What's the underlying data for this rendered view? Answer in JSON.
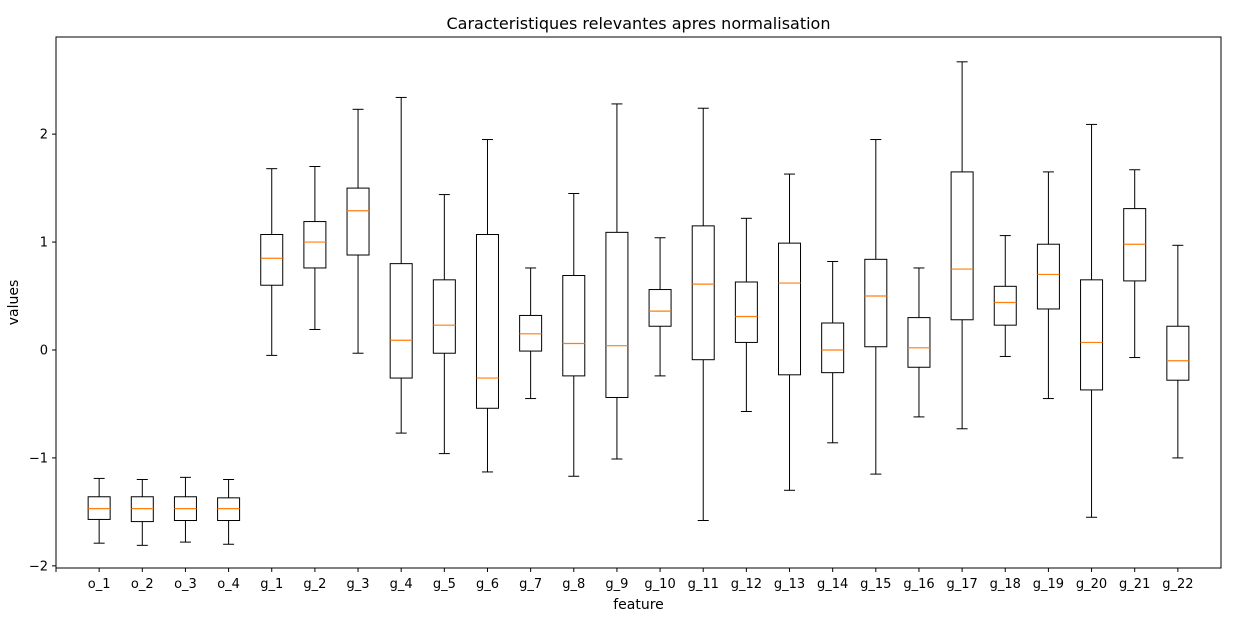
{
  "chart_data": {
    "type": "box",
    "title": "Caracteristiques relevantes apres normalisation",
    "xlabel": "feature",
    "ylabel": "values",
    "ylim": [
      -2.02,
      2.9
    ],
    "yticks": [
      -2,
      -1,
      0,
      1,
      2
    ],
    "ytick_labels": [
      "−2",
      "−1",
      "0",
      "1",
      "2"
    ],
    "colors": {
      "box": "#000000",
      "median": "#ff7f0e"
    },
    "grid": false,
    "categories": [
      "o_1",
      "o_2",
      "o_3",
      "o_4",
      "g_1",
      "g_2",
      "g_3",
      "g_4",
      "g_5",
      "g_6",
      "g_7",
      "g_8",
      "g_9",
      "g_10",
      "g_11",
      "g_12",
      "g_13",
      "g_14",
      "g_15",
      "g_16",
      "g_17",
      "g_18",
      "g_19",
      "g_20",
      "g_21",
      "g_22"
    ],
    "boxes": [
      {
        "whislo": -1.79,
        "q1": -1.57,
        "med": -1.47,
        "q3": -1.36,
        "whishi": -1.19
      },
      {
        "whislo": -1.81,
        "q1": -1.59,
        "med": -1.47,
        "q3": -1.36,
        "whishi": -1.2
      },
      {
        "whislo": -1.78,
        "q1": -1.58,
        "med": -1.47,
        "q3": -1.36,
        "whishi": -1.18
      },
      {
        "whislo": -1.8,
        "q1": -1.58,
        "med": -1.47,
        "q3": -1.37,
        "whishi": -1.2
      },
      {
        "whislo": -0.05,
        "q1": 0.6,
        "med": 0.85,
        "q3": 1.07,
        "whishi": 1.68
      },
      {
        "whislo": 0.19,
        "q1": 0.76,
        "med": 1.0,
        "q3": 1.19,
        "whishi": 1.7
      },
      {
        "whislo": -0.03,
        "q1": 0.88,
        "med": 1.29,
        "q3": 1.5,
        "whishi": 2.23
      },
      {
        "whislo": -0.77,
        "q1": -0.26,
        "med": 0.09,
        "q3": 0.8,
        "whishi": 2.34
      },
      {
        "whislo": -0.96,
        "q1": -0.03,
        "med": 0.23,
        "q3": 0.65,
        "whishi": 1.44
      },
      {
        "whislo": -1.13,
        "q1": -0.54,
        "med": -0.26,
        "q3": 1.07,
        "whishi": 1.95
      },
      {
        "whislo": -0.45,
        "q1": -0.01,
        "med": 0.15,
        "q3": 0.32,
        "whishi": 0.76
      },
      {
        "whislo": -1.17,
        "q1": -0.24,
        "med": 0.06,
        "q3": 0.69,
        "whishi": 1.45
      },
      {
        "whislo": -1.01,
        "q1": -0.44,
        "med": 0.04,
        "q3": 1.09,
        "whishi": 2.28
      },
      {
        "whislo": -0.24,
        "q1": 0.22,
        "med": 0.36,
        "q3": 0.56,
        "whishi": 1.04
      },
      {
        "whislo": -1.58,
        "q1": -0.09,
        "med": 0.61,
        "q3": 1.15,
        "whishi": 2.24
      },
      {
        "whislo": -0.57,
        "q1": 0.07,
        "med": 0.31,
        "q3": 0.63,
        "whishi": 1.22
      },
      {
        "whislo": -1.3,
        "q1": -0.23,
        "med": 0.62,
        "q3": 0.99,
        "whishi": 1.63
      },
      {
        "whislo": -0.86,
        "q1": -0.21,
        "med": 0.0,
        "q3": 0.25,
        "whishi": 0.82
      },
      {
        "whislo": -1.15,
        "q1": 0.03,
        "med": 0.5,
        "q3": 0.84,
        "whishi": 1.95
      },
      {
        "whislo": -0.62,
        "q1": -0.16,
        "med": 0.02,
        "q3": 0.3,
        "whishi": 0.76
      },
      {
        "whislo": -0.73,
        "q1": 0.28,
        "med": 0.75,
        "q3": 1.65,
        "whishi": 2.67
      },
      {
        "whislo": -0.06,
        "q1": 0.23,
        "med": 0.44,
        "q3": 0.59,
        "whishi": 1.06
      },
      {
        "whislo": -0.45,
        "q1": 0.38,
        "med": 0.7,
        "q3": 0.98,
        "whishi": 1.65
      },
      {
        "whislo": -1.55,
        "q1": -0.37,
        "med": 0.07,
        "q3": 0.65,
        "whishi": 2.09
      },
      {
        "whislo": -0.07,
        "q1": 0.64,
        "med": 0.98,
        "q3": 1.31,
        "whishi": 1.67
      },
      {
        "whislo": -1.0,
        "q1": -0.28,
        "med": -0.1,
        "q3": 0.22,
        "whishi": 0.97
      }
    ]
  }
}
